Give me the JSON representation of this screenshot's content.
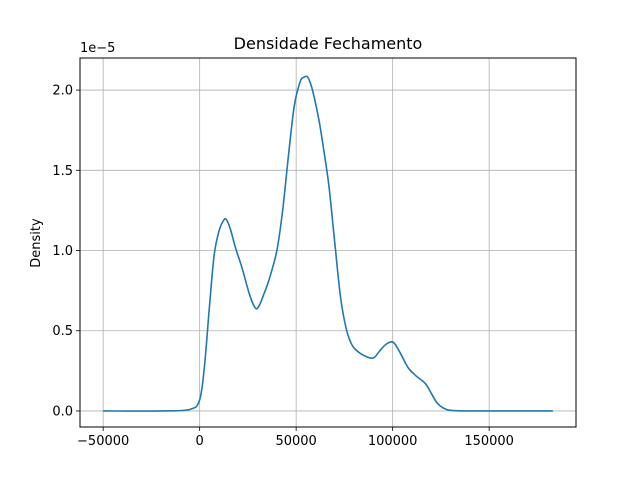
{
  "chart_data": {
    "type": "line",
    "title": "Densidade Fechamento",
    "xlabel": "",
    "ylabel": "Density",
    "y_scale_label": "1e−5",
    "y_multiplier": 1e-05,
    "xlim": [
      -62000,
      195000
    ],
    "ylim": [
      -0.1,
      2.2
    ],
    "xticks": [
      -50000,
      0,
      50000,
      100000,
      150000
    ],
    "xtick_labels": [
      "−50000",
      "0",
      "50000",
      "100000",
      "150000"
    ],
    "yticks": [
      0.0,
      0.5,
      1.0,
      1.5,
      2.0
    ],
    "ytick_labels": [
      "0.0",
      "0.5",
      "1.0",
      "1.5",
      "2.0"
    ],
    "grid": true,
    "series": [
      {
        "color": "#1f77b4",
        "x": [
          -50000,
          -20000,
          -5000,
          0,
          2500,
          5000,
          7500,
          10000,
          12500,
          14000,
          16000,
          18500,
          22000,
          26000,
          29000,
          31000,
          33000,
          36000,
          40000,
          43000,
          46000,
          49000,
          52000,
          54000,
          56000,
          58000,
          60000,
          62000,
          64000,
          67000,
          70000,
          73000,
          76000,
          79000,
          82000,
          86000,
          90000,
          93000,
          96000,
          99000,
          101000,
          104000,
          108000,
          112000,
          117000,
          120000,
          123000,
          126000,
          130000,
          140000,
          160000,
          183000
        ],
        "y": [
          0.0,
          0.0,
          0.01,
          0.07,
          0.28,
          0.64,
          0.97,
          1.12,
          1.19,
          1.19,
          1.13,
          1.02,
          0.89,
          0.72,
          0.64,
          0.66,
          0.72,
          0.82,
          1.0,
          1.25,
          1.59,
          1.9,
          2.05,
          2.08,
          2.08,
          2.02,
          1.92,
          1.8,
          1.65,
          1.4,
          1.05,
          0.71,
          0.51,
          0.41,
          0.37,
          0.34,
          0.33,
          0.37,
          0.41,
          0.43,
          0.42,
          0.36,
          0.27,
          0.22,
          0.17,
          0.11,
          0.05,
          0.02,
          0.004,
          0.0,
          0.0,
          0.0
        ]
      }
    ]
  }
}
